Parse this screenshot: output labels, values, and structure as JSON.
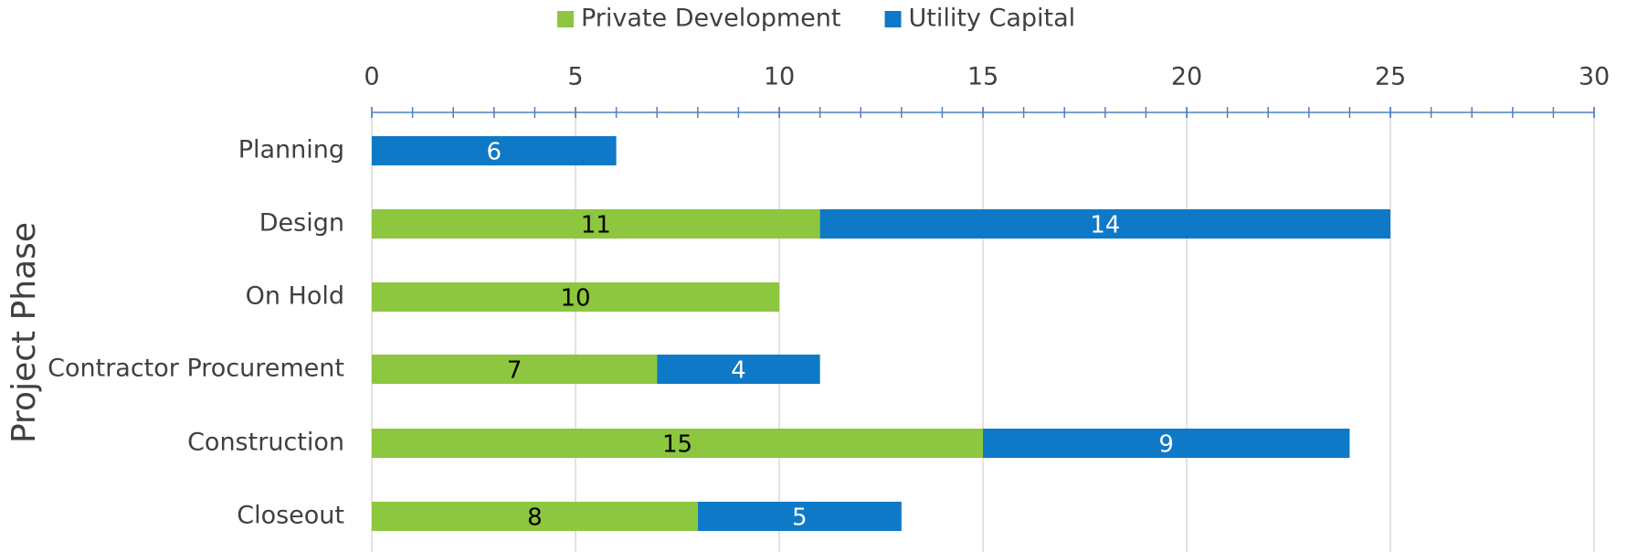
{
  "chart_data": {
    "type": "stacked_barh",
    "y_label": "Project Phase",
    "categories": [
      "Planning",
      "Design",
      "On Hold",
      "Contractor Procurement",
      "Construction",
      "Closeout"
    ],
    "series": [
      {
        "name": "Private Development",
        "color": "#8dc63f",
        "label_color": "#000000",
        "values": [
          null,
          11,
          10,
          7,
          15,
          8
        ]
      },
      {
        "name": "Utility Capital",
        "color": "#0e79c6",
        "label_color": "#ffffff",
        "values": [
          6,
          14,
          null,
          4,
          9,
          5
        ]
      }
    ],
    "xlim": [
      0,
      30
    ],
    "xticks": [
      0,
      5,
      10,
      15,
      20,
      25,
      30
    ],
    "xminor_step": 1,
    "grid": true,
    "legend": "top",
    "axis_position": "top"
  }
}
